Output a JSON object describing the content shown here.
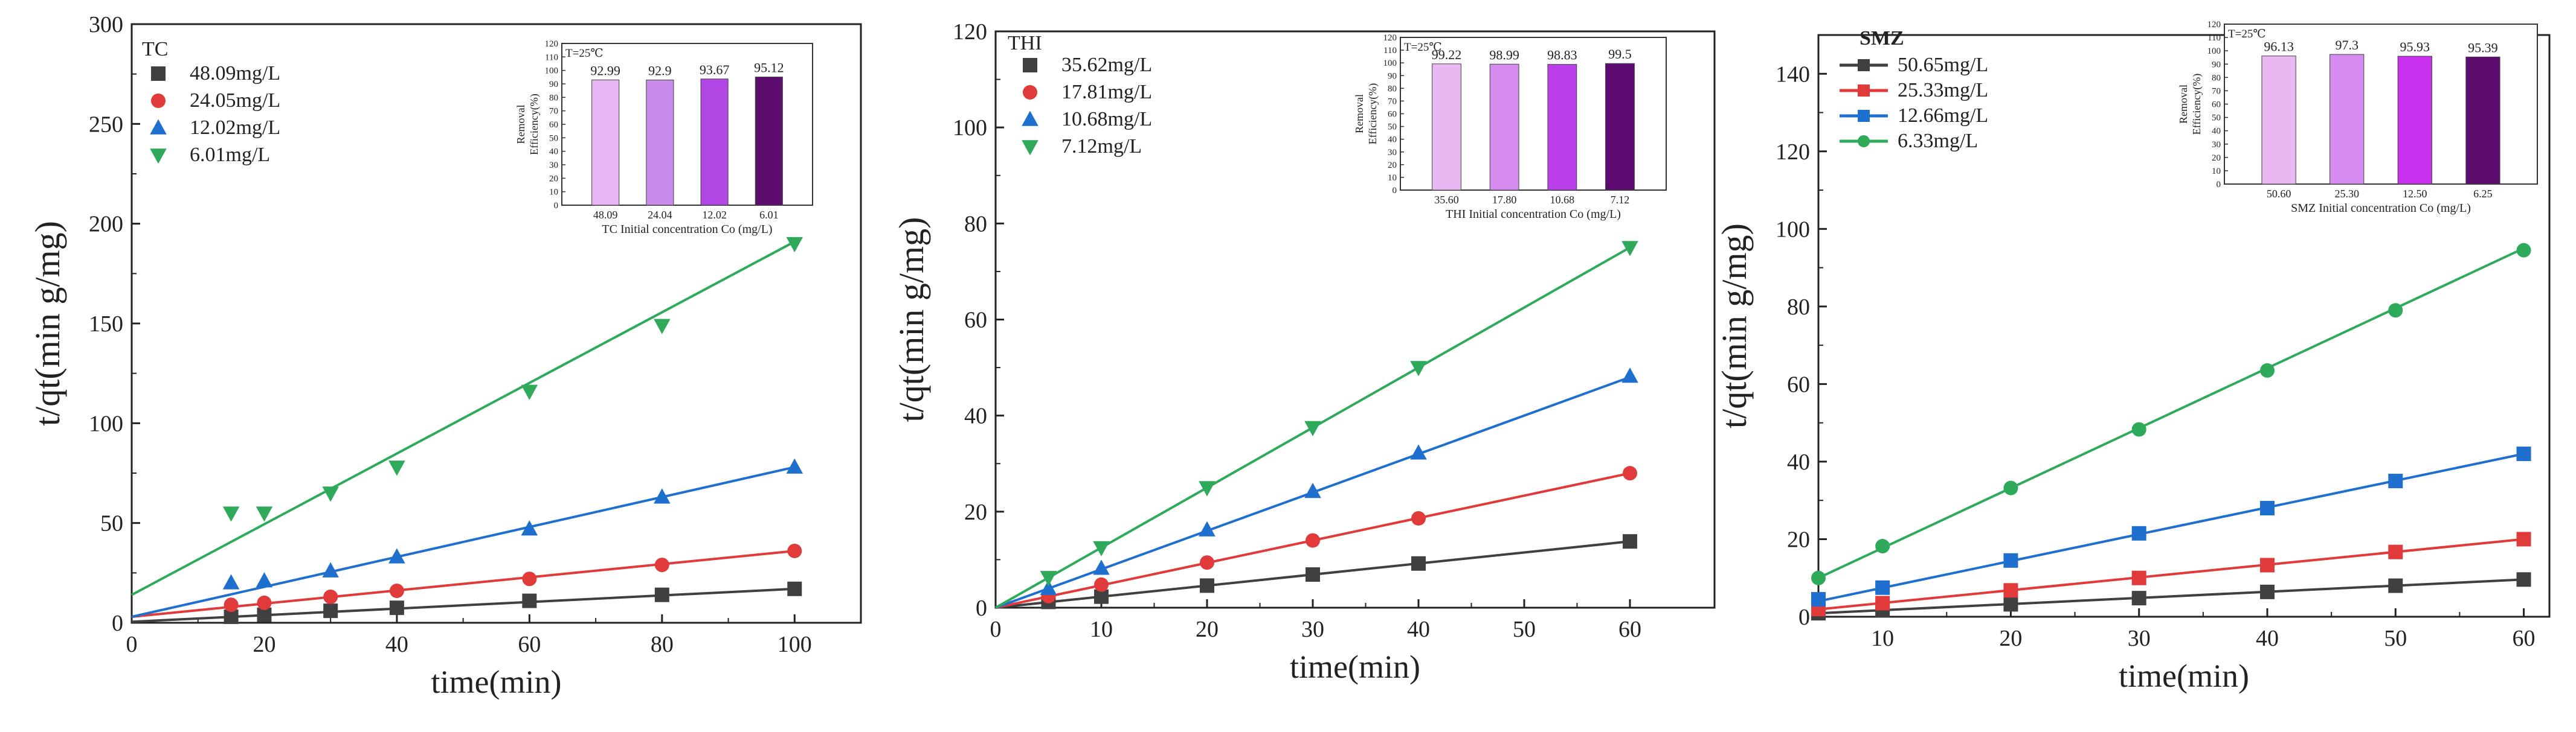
{
  "shared": {
    "xlabel": "time(min)",
    "ylabel": "t/qt(min g/mg)"
  },
  "inset_shared": {
    "ylabel_line1": "Removal",
    "ylabel_line2": "Efficiency(%)",
    "temperature": "T=25℃"
  },
  "colors": {
    "series": [
      "#404040",
      "#e03a3a",
      "#1f6fce",
      "#2eaa5a"
    ],
    "bars_tc": [
      "#e6b5f2",
      "#c98be9",
      "#b247e5",
      "#5c0d6e"
    ],
    "bars_thi": [
      "#e9b8f3",
      "#d58bef",
      "#bb3fe8",
      "#5e0b72"
    ],
    "bars_smz": [
      "#e9b8f3",
      "#d58bef",
      "#c830ee",
      "#5c0d6e"
    ]
  },
  "chart_data": [
    {
      "type": "line",
      "name": "TC",
      "title": "TC",
      "xlabel": "time(min)",
      "ylabel": "t/qt(min g/mg)",
      "xlim": [
        0,
        110
      ],
      "ylim": [
        0,
        300
      ],
      "xticks": [
        0,
        20,
        40,
        60,
        80,
        100
      ],
      "yticks": [
        0,
        50,
        100,
        150,
        200,
        250,
        300
      ],
      "series": [
        {
          "name": "48.09mg/L",
          "marker": "square",
          "x": [
            15,
            20,
            30,
            40,
            60,
            80,
            100
          ],
          "y": [
            3,
            4,
            6,
            7.5,
            11,
            14,
            17
          ],
          "fit": [
            [
              0,
              0.5
            ],
            [
              100,
              17
            ]
          ]
        },
        {
          "name": "24.05mg/L",
          "marker": "circle",
          "x": [
            15,
            20,
            30,
            40,
            60,
            80,
            100
          ],
          "y": [
            9,
            10,
            13,
            16,
            22,
            29,
            36
          ],
          "fit": [
            [
              0,
              3
            ],
            [
              100,
              36
            ]
          ]
        },
        {
          "name": "12.02mg/L",
          "marker": "triangle-up",
          "x": [
            15,
            20,
            30,
            40,
            60,
            80,
            100
          ],
          "y": [
            20,
            21,
            26,
            33,
            47,
            63,
            78
          ],
          "fit": [
            [
              0,
              3
            ],
            [
              100,
              78
            ]
          ]
        },
        {
          "name": "6.01mg/L",
          "marker": "triangle-down",
          "x": [
            15,
            20,
            30,
            40,
            60,
            80,
            100
          ],
          "y": [
            55,
            55,
            65,
            78,
            116,
            149,
            190
          ],
          "fit": [
            [
              0,
              14
            ],
            [
              100,
              191
            ]
          ]
        }
      ],
      "inset": {
        "type": "bar",
        "xlabel": "TC Initial concentration Co (mg/L)",
        "categories": [
          "48.09",
          "24.04",
          "12.02",
          "6.01"
        ],
        "values": [
          92.99,
          92.9,
          93.67,
          95.12
        ],
        "ylim": [
          0,
          120
        ],
        "yticks": [
          0,
          10,
          20,
          30,
          40,
          50,
          60,
          70,
          80,
          90,
          100,
          110,
          120
        ]
      }
    },
    {
      "type": "line",
      "name": "THI",
      "title": "THI",
      "xlabel": "time(min)",
      "ylabel": "t/qt(min g/mg)",
      "xlim": [
        0,
        68
      ],
      "ylim": [
        0,
        120
      ],
      "xticks": [
        0,
        10,
        20,
        30,
        40,
        50,
        60
      ],
      "yticks": [
        0,
        20,
        40,
        60,
        80,
        100,
        120
      ],
      "series": [
        {
          "name": "35.62mg/L",
          "marker": "square",
          "x": [
            5,
            10,
            20,
            30,
            40,
            60
          ],
          "y": [
            1.2,
            2.3,
            4.6,
            6.9,
            9.2,
            13.8
          ],
          "fit": [
            [
              0,
              0
            ],
            [
              60,
              13.8
            ]
          ]
        },
        {
          "name": "17.81mg/L",
          "marker": "circle",
          "x": [
            5,
            10,
            20,
            30,
            40,
            60
          ],
          "y": [
            2.4,
            4.8,
            9.4,
            14,
            18.6,
            28
          ],
          "fit": [
            [
              0,
              0
            ],
            [
              60,
              28
            ]
          ]
        },
        {
          "name": "10.68mg/L",
          "marker": "triangle-up",
          "x": [
            5,
            10,
            20,
            30,
            40,
            60
          ],
          "y": [
            4,
            8.2,
            16.2,
            24.2,
            32.2,
            48.2
          ],
          "fit": [
            [
              0,
              0
            ],
            [
              60,
              48
            ]
          ]
        },
        {
          "name": "7.12mg/L",
          "marker": "triangle-down",
          "x": [
            5,
            10,
            20,
            30,
            40,
            60
          ],
          "y": [
            6.3,
            12.5,
            25,
            37.5,
            50,
            75
          ],
          "fit": [
            [
              0,
              0
            ],
            [
              60,
              75
            ]
          ]
        }
      ],
      "inset": {
        "type": "bar",
        "xlabel": "THI Initial concentration Co (mg/L)",
        "categories": [
          "35.60",
          "17.80",
          "10.68",
          "7.12"
        ],
        "values": [
          99.22,
          98.99,
          98.83,
          99.5
        ],
        "ylim": [
          0,
          120
        ],
        "yticks": [
          0,
          10,
          20,
          30,
          40,
          50,
          60,
          70,
          80,
          90,
          100,
          110,
          120
        ]
      }
    },
    {
      "type": "line",
      "name": "SMZ",
      "title": "SMZ",
      "xlabel": "time(min)",
      "ylabel": "t/qt(min g/mg)",
      "xlim": [
        5,
        62
      ],
      "ylim": [
        0,
        150
      ],
      "xticks": [
        10,
        20,
        30,
        40,
        50,
        60
      ],
      "yticks": [
        0,
        20,
        40,
        60,
        80,
        100,
        120,
        140
      ],
      "series": [
        {
          "name": "50.65mg/L",
          "marker": "square",
          "x": [
            5,
            10,
            20,
            30,
            40,
            50,
            60
          ],
          "y": [
            0.9,
            1.7,
            3.2,
            4.8,
            6.4,
            8,
            9.6
          ],
          "fit": [
            [
              5,
              0.9
            ],
            [
              60,
              9.6
            ]
          ]
        },
        {
          "name": "25.33mg/L",
          "marker": "square",
          "x": [
            5,
            10,
            20,
            30,
            40,
            50,
            60
          ],
          "y": [
            2,
            3.5,
            6.8,
            10,
            13.3,
            16.7,
            20
          ],
          "fit": [
            [
              5,
              1.9
            ],
            [
              60,
              20
            ]
          ]
        },
        {
          "name": "12.66mg/L",
          "marker": "square",
          "x": [
            5,
            10,
            20,
            30,
            40,
            50,
            60
          ],
          "y": [
            4.5,
            7.5,
            14.5,
            21.5,
            28,
            35,
            42
          ],
          "fit": [
            [
              5,
              4
            ],
            [
              60,
              42
            ]
          ]
        },
        {
          "name": "6.33mg/L",
          "marker": "circle",
          "x": [
            5,
            10,
            20,
            30,
            40,
            50,
            60
          ],
          "y": [
            10,
            18.2,
            33.2,
            48.3,
            63.5,
            79,
            94.5
          ],
          "fit": [
            [
              5,
              10
            ],
            [
              60,
              95
            ]
          ]
        }
      ],
      "inset": {
        "type": "bar",
        "xlabel": "SMZ Initial concentration Co (mg/L)",
        "categories": [
          "50.60",
          "25.30",
          "12.50",
          "6.25"
        ],
        "values": [
          96.13,
          97.3,
          95.93,
          95.39
        ],
        "ylim": [
          0,
          120
        ],
        "yticks": [
          0,
          10,
          20,
          30,
          40,
          50,
          60,
          70,
          80,
          90,
          100,
          110,
          120
        ]
      }
    }
  ]
}
